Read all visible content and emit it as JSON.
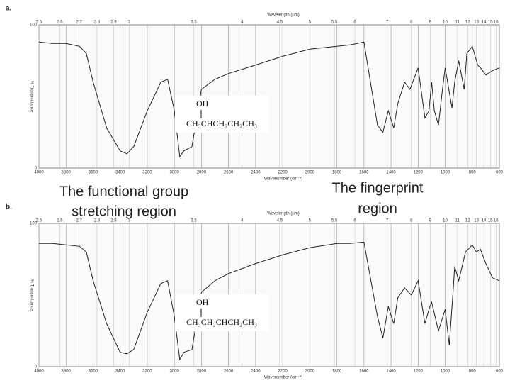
{
  "chart_data": [
    {
      "type": "line",
      "label": "a.",
      "x_label": "Wavenumber (cm⁻¹)",
      "x2_label": "Wavelength (μm)",
      "y_label": "% Transmittance",
      "structure": {
        "top": "OH",
        "main": "CH₃CHCH₂CH₂CH₃"
      },
      "xlim": [
        4000,
        600
      ],
      "xticks": [
        4000,
        3800,
        3600,
        3400,
        3200,
        3000,
        2800,
        2600,
        2400,
        2200,
        2000,
        1800,
        1600,
        1400,
        1200,
        1000,
        800,
        600
      ],
      "x2ticks": [
        2.5,
        2.6,
        2.7,
        2.8,
        2.9,
        3,
        3.5,
        4,
        4.5,
        5,
        5.5,
        6,
        7,
        8,
        9,
        10,
        11,
        12,
        13,
        14,
        15,
        16
      ],
      "ylim": [
        0,
        100
      ],
      "yticks": [
        0,
        100
      ],
      "grid": true,
      "series": [
        {
          "color": "#222222",
          "x": [
            4000,
            3900,
            3800,
            3700,
            3650,
            3600,
            3500,
            3400,
            3350,
            3300,
            3200,
            3100,
            3050,
            3000,
            2960,
            2930,
            2870,
            2800,
            2700,
            2600,
            2400,
            2200,
            2000,
            1800,
            1700,
            1600,
            1500,
            1460,
            1420,
            1380,
            1350,
            1300,
            1260,
            1200,
            1150,
            1120,
            1100,
            1080,
            1050,
            1020,
            1000,
            950,
            930,
            900,
            860,
            840,
            800,
            760,
            740,
            700,
            650,
            600
          ],
          "values": [
            88,
            87,
            87,
            85,
            80,
            60,
            28,
            12,
            10,
            15,
            40,
            60,
            62,
            40,
            8,
            12,
            15,
            55,
            62,
            66,
            72,
            78,
            83,
            85,
            86,
            88,
            30,
            25,
            40,
            28,
            45,
            60,
            55,
            70,
            35,
            40,
            60,
            40,
            30,
            55,
            70,
            42,
            60,
            75,
            55,
            80,
            85,
            72,
            70,
            65,
            68,
            70
          ]
        }
      ]
    },
    {
      "type": "line",
      "label": "b.",
      "x_label": "Wavenumber (cm⁻¹)",
      "x2_label": "Wavelength (μm)",
      "y_label": "% Transmittance",
      "structure": {
        "top": "OH",
        "main": "CH₃CH₂CHCH₂CH₃"
      },
      "xlim": [
        4000,
        600
      ],
      "xticks": [
        4000,
        3800,
        3600,
        3400,
        3200,
        3000,
        2800,
        2600,
        2400,
        2200,
        2000,
        1800,
        1600,
        1400,
        1200,
        1000,
        800,
        600
      ],
      "x2ticks": [
        2.5,
        2.6,
        2.7,
        2.8,
        2.9,
        3,
        3.5,
        4,
        4.5,
        5,
        5.5,
        6,
        7,
        8,
        9,
        10,
        11,
        12,
        13,
        14,
        15,
        16
      ],
      "ylim": [
        0,
        100
      ],
      "yticks": [
        0,
        100
      ],
      "grid": true,
      "series": [
        {
          "color": "#222222",
          "x": [
            4000,
            3900,
            3800,
            3700,
            3650,
            3600,
            3500,
            3400,
            3350,
            3300,
            3200,
            3100,
            3050,
            3000,
            2960,
            2930,
            2870,
            2800,
            2700,
            2600,
            2400,
            2200,
            2000,
            1800,
            1700,
            1600,
            1500,
            1460,
            1420,
            1380,
            1350,
            1300,
            1250,
            1200,
            1150,
            1120,
            1100,
            1050,
            1000,
            970,
            940,
            930,
            900,
            850,
            800,
            770,
            740,
            700,
            650,
            600
          ],
          "values": [
            86,
            86,
            85,
            84,
            80,
            60,
            30,
            10,
            9,
            12,
            38,
            58,
            60,
            35,
            5,
            10,
            12,
            52,
            60,
            65,
            72,
            78,
            83,
            86,
            86,
            87,
            35,
            20,
            42,
            30,
            48,
            55,
            50,
            60,
            30,
            40,
            45,
            25,
            40,
            15,
            55,
            70,
            60,
            80,
            85,
            80,
            82,
            72,
            62,
            60
          ]
        }
      ]
    }
  ],
  "annotations": [
    {
      "lines": [
        "The functional group",
        "stretching region"
      ]
    },
    {
      "lines": [
        "The fingerprint",
        "region"
      ]
    }
  ]
}
